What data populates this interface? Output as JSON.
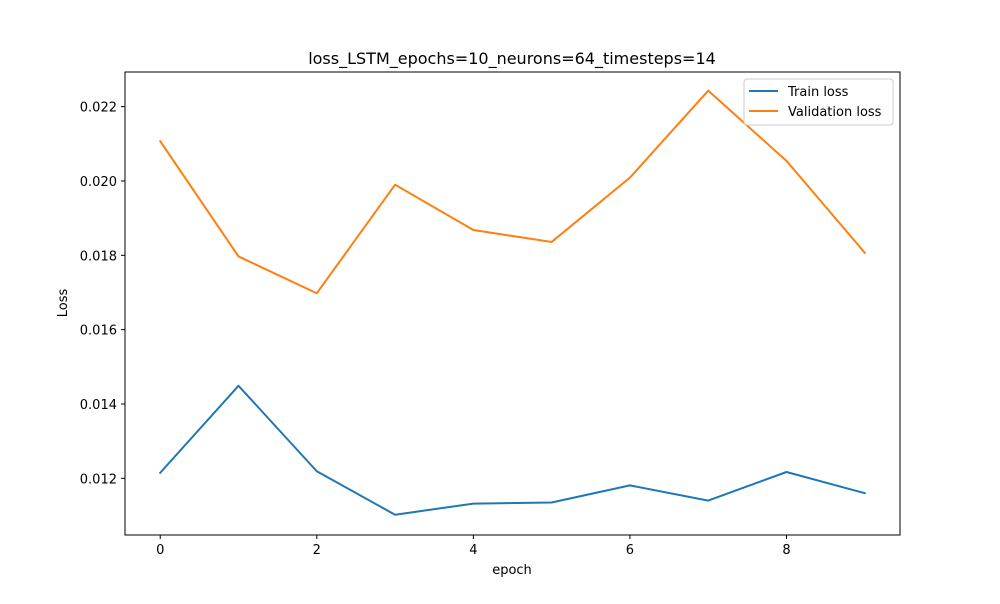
{
  "chart_data": {
    "type": "line",
    "title": "loss_LSTM_epochs=10_neurons=64_timesteps=14",
    "xlabel": "epoch",
    "ylabel": "Loss",
    "x": [
      0,
      1,
      2,
      3,
      4,
      5,
      6,
      7,
      8,
      9
    ],
    "series": [
      {
        "name": "Train loss",
        "color": "#1f77b4",
        "values": [
          0.01215,
          0.01449,
          0.01219,
          0.01102,
          0.01132,
          0.01135,
          0.01181,
          0.0114,
          0.01217,
          0.0116
        ]
      },
      {
        "name": "Validation loss",
        "color": "#ff7f0e",
        "values": [
          0.02107,
          0.01797,
          0.01698,
          0.0199,
          0.01868,
          0.01836,
          0.02009,
          0.02243,
          0.02054,
          0.01807
        ]
      }
    ],
    "xlim": [
      -0.45,
      9.45
    ],
    "ylim": [
      0.010475,
      0.022932
    ],
    "xticks": [
      0,
      2,
      4,
      6,
      8
    ],
    "xtick_labels": [
      "0",
      "2",
      "4",
      "6",
      "8"
    ],
    "yticks": [
      0.012,
      0.014,
      0.016,
      0.018,
      0.02,
      0.022
    ],
    "ytick_labels": [
      "0.012",
      "0.014",
      "0.016",
      "0.018",
      "0.020",
      "0.022"
    ],
    "grid": false,
    "legend_position": "top-right"
  }
}
